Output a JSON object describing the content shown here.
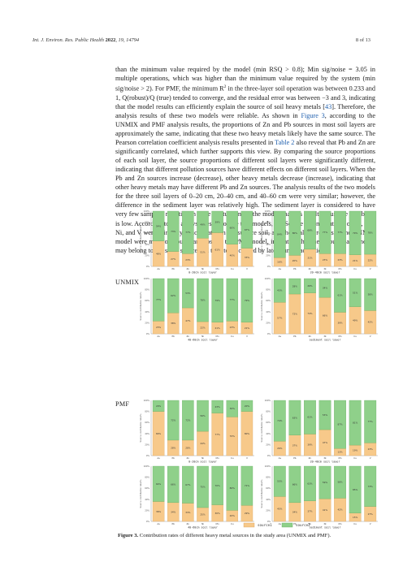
{
  "header": {
    "journal_italic": "Int. J. Environ. Res. Public Health",
    "year": "2022",
    "issue": ", 19, 14794",
    "page": "8 of 13"
  },
  "body": {
    "para1_a": "than the minimum value required by the model (min RSQ > 0.8); Min sig/noise = 3.05 in multiple operations, which was higher than the minimum value required by the system (min sig/noise > 2). For PMF, the minimum R",
    "para1_sup": "2",
    "para1_b": " in the three-layer soil operation was between 0.233 and 1, Q(robust)/Q (true) tended to converge, and the residual error was between −3 and 3, indicating that the model results can efficiently explain the source of soil heavy metals [",
    "para1_ref": "43",
    "para1_c": "]. Therefore, the analysis results of these two models were reliable. As shown in ",
    "para1_fig": "Figure 3",
    "para1_d": ", according to the UNMIX and PMF analysis results, the proportions of Zn and Pb sources in most soil layers are approximately the same, indicating that these two heavy metals likely have the same source. The Pearson correlation coefficient analysis results presented in ",
    "para1_tab": "Table 2",
    "para1_e": " also reveal that Pb and Zn are significantly correlated, which further supports this view. By comparing the source proportions of each soil layer, the source proportions of different soil layers were significantly different, indicating that different pollution sources have different effects on different soil layers. When the Pb and Zn sources increase (decrease), other heavy metals decrease (increase), indicating that other heavy metals may have different Pb and Zn sources. The analysis results of the two models for the three soil layers of 0–20 cm, 20–40 cm, and 40–60 cm were very similar; however, the difference in the sediment layer was relatively high. The sediment layer is considered to have very few samples, resulting in large fluctuations in the model analysis results; thus, the reliability is low. According to the analysis results of the two models, the Source 1 contributions of As, Mn, Ni, and V were primarily concentrated in the surface soil, and the analysis results of the UNMIX model were more obvious than those of the PMF model, indicating that these four heavy metals may belong to the same source and tend to be caused by later human activities."
  },
  "models": {
    "unmix": "UNMIX",
    "pmf": "PMF"
  },
  "legend": {
    "s1": "source1",
    "s2": "source2"
  },
  "caption": {
    "label": "Figure 3.",
    "text": " Contribution rates of different heavy metal sources in the study area (UNMIX and PMF)."
  },
  "colors": {
    "source1": "#f7c98a",
    "source2": "#8fd08a"
  },
  "chart_data": [
    {
      "type": "bar",
      "stacked": true,
      "model": "UNMIX",
      "xlabel": "0-20cm soil layer",
      "ylabel": "Source contribution rate/%",
      "categories": [
        "As",
        "Pb",
        "Zn",
        "Ni",
        "Mn",
        "Cu",
        "V"
      ],
      "series": [
        {
          "name": "source1",
          "values": [
            46,
            27,
            23,
            51,
            61,
            40,
            33
          ]
        },
        {
          "name": "source2",
          "values": [
            54,
            73,
            77,
            49,
            39,
            60,
            67
          ]
        }
      ],
      "ylim": [
        0,
        100
      ]
    },
    {
      "type": "bar",
      "stacked": true,
      "model": "UNMIX",
      "xlabel": "20-40cm soil layer",
      "ylabel": "Source contribution rate/%",
      "categories": [
        "As",
        "Pb",
        "Zn",
        "Ni",
        "Mn",
        "Cu",
        "V"
      ],
      "series": [
        {
          "name": "source1",
          "values": [
            16,
            20,
            31,
            23,
            23,
            21,
            22
          ]
        },
        {
          "name": "source2",
          "values": [
            84,
            80,
            69,
            77,
            77,
            79,
            78
          ]
        }
      ],
      "ylim": [
        0,
        100
      ]
    },
    {
      "type": "bar",
      "stacked": true,
      "model": "UNMIX",
      "xlabel": "40-60cm soil layer",
      "ylabel": "Source contribution rate/%",
      "categories": [
        "As",
        "Pb",
        "Zn",
        "Ni",
        "Mn",
        "Cu",
        "V"
      ],
      "series": [
        {
          "name": "source1",
          "values": [
            23,
            38,
            47,
            22,
            21,
            23,
            21
          ]
        },
        {
          "name": "source2",
          "values": [
            77,
            62,
            53,
            78,
            79,
            77,
            79
          ]
        }
      ],
      "ylim": [
        0,
        100
      ]
    },
    {
      "type": "bar",
      "stacked": true,
      "model": "UNMIX",
      "xlabel": "sediment soil layer",
      "ylabel": "Source contribution rate/%",
      "categories": [
        "As",
        "Pb",
        "Zn",
        "Ni",
        "Mn",
        "Cu",
        "V"
      ],
      "series": [
        {
          "name": "source1",
          "values": [
            57,
            72,
            74,
            66,
            39,
            49,
            42
          ]
        },
        {
          "name": "source2",
          "values": [
            43,
            28,
            26,
            34,
            61,
            51,
            58
          ]
        }
      ],
      "ylim": [
        0,
        100
      ]
    },
    {
      "type": "bar",
      "stacked": true,
      "model": "PMF",
      "xlabel": "0-20cm soil layer",
      "ylabel": "Source contribution rate/%",
      "categories": [
        "As",
        "Pb",
        "Zn",
        "Ni",
        "Mn",
        "Cu",
        "V"
      ],
      "series": [
        {
          "name": "source1",
          "values": [
            80,
            28,
            28,
            44,
            77,
            70,
            80
          ]
        },
        {
          "name": "source2",
          "values": [
            20,
            72,
            72,
            56,
            23,
            30,
            20
          ]
        }
      ],
      "ylim": [
        0,
        100
      ]
    },
    {
      "type": "bar",
      "stacked": true,
      "model": "PMF",
      "xlabel": "20-40cm soil layer",
      "ylabel": "Source contribution rate/%",
      "categories": [
        "As",
        "Pb",
        "Zn",
        "Ni",
        "Mn",
        "Cu",
        "V"
      ],
      "series": [
        {
          "name": "source1",
          "values": [
            26,
            37,
            39,
            47,
            13,
            19,
            23
          ]
        },
        {
          "name": "source2",
          "values": [
            74,
            63,
            61,
            53,
            87,
            81,
            77
          ]
        }
      ],
      "ylim": [
        0,
        100
      ]
    },
    {
      "type": "bar",
      "stacked": true,
      "model": "PMF",
      "xlabel": "40-60cm soil layer",
      "ylabel": "Source contribution rate/%",
      "categories": [
        "As",
        "Pb",
        "Zn",
        "Ni",
        "Mn",
        "Cu",
        "V"
      ],
      "series": [
        {
          "name": "source1",
          "values": [
            36,
            34,
            33,
            25,
            30,
            20,
            29
          ]
        },
        {
          "name": "source2",
          "values": [
            64,
            66,
            67,
            75,
            70,
            80,
            71
          ]
        }
      ],
      "ylim": [
        0,
        100
      ]
    },
    {
      "type": "bar",
      "stacked": true,
      "model": "PMF",
      "xlabel": "sediment soil layer",
      "ylabel": "Source contribution rate/%",
      "categories": [
        "As",
        "Pb",
        "Zn",
        "Ni",
        "Mn",
        "Cu",
        "V"
      ],
      "series": [
        {
          "name": "source1",
          "values": [
            45,
            34,
            37,
            41,
            42,
            15,
            27
          ]
        },
        {
          "name": "source2",
          "values": [
            55,
            66,
            63,
            59,
            58,
            85,
            73
          ]
        }
      ],
      "ylim": [
        0,
        100
      ]
    }
  ]
}
